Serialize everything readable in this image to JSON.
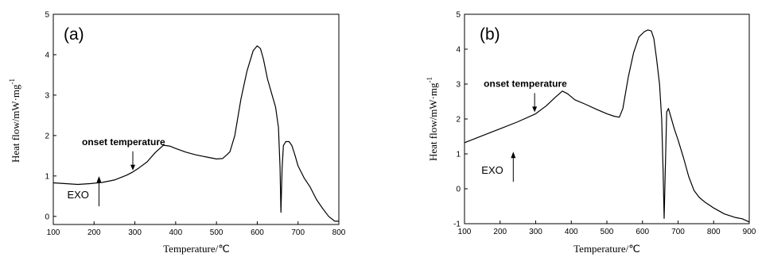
{
  "chart_data": [
    {
      "type": "line",
      "panel_label": "(a)",
      "xlabel": "Temperature/℃",
      "ylabel": "Heat flow/mW·mg",
      "ylabel_sup": "-1",
      "xlim": [
        100,
        800
      ],
      "ylim": [
        -0.2,
        5
      ],
      "xticks": [
        100,
        200,
        300,
        400,
        500,
        600,
        700,
        800
      ],
      "yticks": [
        0,
        1,
        2,
        3,
        4,
        5
      ],
      "grid": false,
      "series": [
        {
          "points": [
            [
              100,
              0.83
            ],
            [
              130,
              0.81
            ],
            [
              160,
              0.79
            ],
            [
              190,
              0.81
            ],
            [
              220,
              0.84
            ],
            [
              250,
              0.9
            ],
            [
              280,
              1.02
            ],
            [
              295,
              1.1
            ],
            [
              310,
              1.2
            ],
            [
              330,
              1.35
            ],
            [
              350,
              1.58
            ],
            [
              370,
              1.76
            ],
            [
              385,
              1.74
            ],
            [
              400,
              1.68
            ],
            [
              425,
              1.59
            ],
            [
              450,
              1.52
            ],
            [
              475,
              1.47
            ],
            [
              500,
              1.42
            ],
            [
              515,
              1.43
            ],
            [
              525,
              1.52
            ],
            [
              533,
              1.6
            ],
            [
              545,
              2.0
            ],
            [
              560,
              2.9
            ],
            [
              575,
              3.6
            ],
            [
              590,
              4.1
            ],
            [
              600,
              4.22
            ],
            [
              608,
              4.15
            ],
            [
              615,
              3.9
            ],
            [
              625,
              3.4
            ],
            [
              635,
              3.05
            ],
            [
              645,
              2.7
            ],
            [
              652,
              2.2
            ],
            [
              656,
              1.2
            ],
            [
              658,
              0.1
            ],
            [
              661,
              1.2
            ],
            [
              664,
              1.75
            ],
            [
              670,
              1.85
            ],
            [
              678,
              1.85
            ],
            [
              685,
              1.75
            ],
            [
              693,
              1.5
            ],
            [
              700,
              1.25
            ],
            [
              715,
              0.95
            ],
            [
              730,
              0.72
            ],
            [
              745,
              0.42
            ],
            [
              760,
              0.2
            ],
            [
              775,
              0.0
            ],
            [
              790,
              -0.12
            ],
            [
              800,
              -0.12
            ]
          ]
        }
      ],
      "annotations": [
        {
          "text": "onset temperature",
          "x": 295,
          "y": 1.1,
          "kind": "arrow-down"
        },
        {
          "text": "EXO",
          "x": 212,
          "y": 0.25,
          "kind": "arrow-up"
        }
      ]
    },
    {
      "type": "line",
      "panel_label": "(b)",
      "xlabel": "Temperature/℃",
      "ylabel": "Heat flow/mW·mg",
      "ylabel_sup": "-1",
      "xlim": [
        100,
        900
      ],
      "ylim": [
        -1,
        5
      ],
      "xticks": [
        100,
        200,
        300,
        400,
        500,
        600,
        700,
        800,
        900
      ],
      "yticks": [
        -1,
        0,
        1,
        2,
        3,
        4,
        5
      ],
      "grid": false,
      "series": [
        {
          "points": [
            [
              100,
              1.32
            ],
            [
              150,
              1.52
            ],
            [
              200,
              1.72
            ],
            [
              250,
              1.92
            ],
            [
              300,
              2.15
            ],
            [
              330,
              2.38
            ],
            [
              355,
              2.62
            ],
            [
              375,
              2.8
            ],
            [
              390,
              2.72
            ],
            [
              410,
              2.55
            ],
            [
              440,
              2.42
            ],
            [
              470,
              2.28
            ],
            [
              500,
              2.15
            ],
            [
              520,
              2.08
            ],
            [
              535,
              2.05
            ],
            [
              545,
              2.3
            ],
            [
              560,
              3.2
            ],
            [
              575,
              3.9
            ],
            [
              590,
              4.35
            ],
            [
              605,
              4.5
            ],
            [
              615,
              4.55
            ],
            [
              625,
              4.52
            ],
            [
              632,
              4.3
            ],
            [
              640,
              3.7
            ],
            [
              648,
              3.0
            ],
            [
              654,
              2.0
            ],
            [
              658,
              0.5
            ],
            [
              661,
              -0.85
            ],
            [
              664,
              0.5
            ],
            [
              668,
              2.2
            ],
            [
              673,
              2.3
            ],
            [
              680,
              2.05
            ],
            [
              690,
              1.7
            ],
            [
              700,
              1.4
            ],
            [
              715,
              0.9
            ],
            [
              730,
              0.35
            ],
            [
              745,
              -0.05
            ],
            [
              760,
              -0.25
            ],
            [
              775,
              -0.38
            ],
            [
              800,
              -0.55
            ],
            [
              830,
              -0.72
            ],
            [
              860,
              -0.82
            ],
            [
              880,
              -0.86
            ],
            [
              900,
              -0.95
            ]
          ]
        }
      ],
      "annotations": [
        {
          "text": "onset temperature",
          "x": 297,
          "y": 2.15,
          "kind": "arrow-down"
        },
        {
          "text": "EXO",
          "x": 237,
          "y": 0.2,
          "kind": "arrow-up"
        }
      ]
    }
  ]
}
